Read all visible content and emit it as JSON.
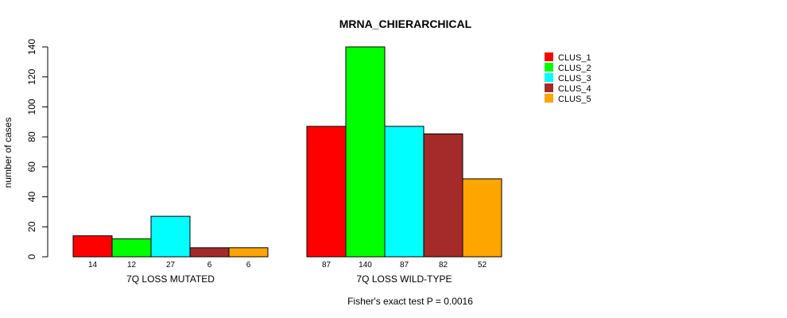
{
  "chart_data": {
    "type": "bar",
    "title": "MRNA_CHIERARCHICAL",
    "ylabel": "number of cases",
    "xlabel": "",
    "ylim": [
      0,
      140
    ],
    "yticks": [
      0,
      20,
      40,
      60,
      80,
      100,
      120,
      140
    ],
    "legend_position": "top-right",
    "groups": [
      "7Q LOSS MUTATED",
      "7Q LOSS WILD-TYPE"
    ],
    "series": [
      {
        "name": "CLUS_1",
        "color": "#ff0000",
        "values": [
          14,
          87
        ]
      },
      {
        "name": "CLUS_2",
        "color": "#00ff00",
        "values": [
          12,
          140
        ]
      },
      {
        "name": "CLUS_3",
        "color": "#00ffff",
        "values": [
          27,
          87
        ]
      },
      {
        "name": "CLUS_4",
        "color": "#a52a2a",
        "values": [
          6,
          82
        ]
      },
      {
        "name": "CLUS_5",
        "color": "#ffa500",
        "values": [
          6,
          52
        ]
      }
    ],
    "footnote": "Fisher's exact test P = 0.0016"
  }
}
